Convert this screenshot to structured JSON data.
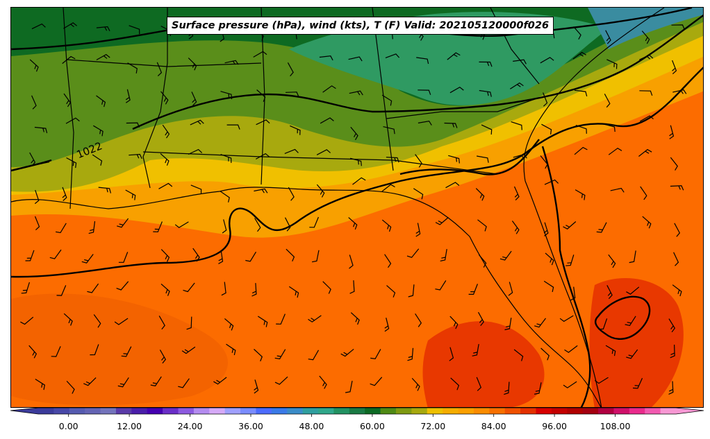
{
  "title": "Surface pressure (hPa), wind (kts), T (F) Valid: 202105120000f026",
  "isobar_label": "1022",
  "colorbar": {
    "vmin": -6,
    "vmax": 120,
    "tick_values": [
      0,
      12,
      24,
      36,
      48,
      60,
      72,
      84,
      96,
      108
    ],
    "tick_labels": [
      "0.00",
      "12.00",
      "24.00",
      "36.00",
      "48.00",
      "60.00",
      "72.00",
      "84.00",
      "96.00",
      "108.00"
    ],
    "colors": [
      "#3b3b9b",
      "#4848a8",
      "#565bb0",
      "#6464b4",
      "#7474bc",
      "#5a3aa8",
      "#4a1eaa",
      "#4400b0",
      "#6a2ec8",
      "#8c5ae0",
      "#b48cf0",
      "#d6aaf8",
      "#a0a0ff",
      "#7a8cff",
      "#4c6cff",
      "#3a7ae8",
      "#3a8cc8",
      "#2f9f9f",
      "#2fa78a",
      "#229262",
      "#1a7a44",
      "#0c6a24",
      "#4f8a14",
      "#7f9a10",
      "#a7a90e",
      "#eec000",
      "#f5ad00",
      "#fca000",
      "#fc8c00",
      "#f87000",
      "#f05000",
      "#e43000",
      "#d80000",
      "#c40000",
      "#b00000",
      "#a40010",
      "#b00040",
      "#d0106a",
      "#ea2a8c",
      "#f25ab0",
      "#f898d4"
    ]
  },
  "temperature_bands": [
    {
      "name": "gulf-south",
      "color": "#fc6c00"
    },
    {
      "name": "florida-warm",
      "color": "#f8a000"
    },
    {
      "name": "coastal",
      "color": "#f0c000"
    },
    {
      "name": "inland-south",
      "color": "#a8a90e"
    },
    {
      "name": "mid-inland",
      "color": "#5a8e1a"
    },
    {
      "name": "north",
      "color": "#0e6a22"
    },
    {
      "name": "appalachian",
      "color": "#2f9a62"
    },
    {
      "name": "atlantic",
      "color": "#3a8ca0"
    },
    {
      "name": "hot-spots",
      "color": "#e83800"
    }
  ]
}
